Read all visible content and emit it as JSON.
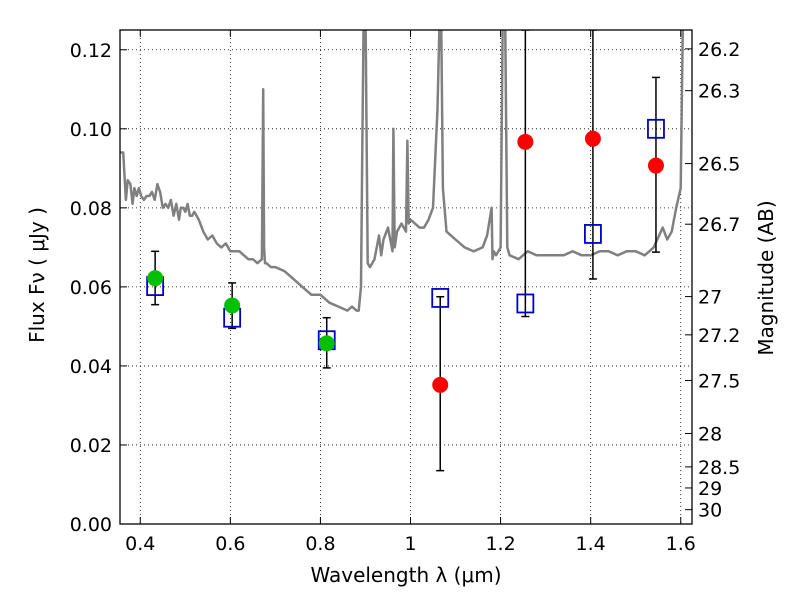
{
  "chart_data": {
    "type": "scatter",
    "xlabel": "Wavelength  λ (μm)",
    "ylabel": "Flux  Fν  ( μJy )",
    "y2label": "Magnitude (AB)",
    "xlim": [
      0.355,
      1.625
    ],
    "ylim": [
      0.0,
      0.125
    ],
    "grid": true,
    "grid_style": "dotted",
    "x_ticks": [
      0.4,
      0.6,
      0.8,
      1.0,
      1.2,
      1.4,
      1.6
    ],
    "x_tick_labels": [
      "0.4",
      "0.6",
      "0.8",
      "1",
      "1.2",
      "1.4",
      "1.6"
    ],
    "y_ticks": [
      0.0,
      0.02,
      0.04,
      0.06,
      0.08,
      0.1,
      0.12
    ],
    "y_tick_labels": [
      "0.00",
      "0.02",
      "0.04",
      "0.06",
      "0.08",
      "0.10",
      "0.12"
    ],
    "y2_tick_labels": [
      "26.2",
      "26.3",
      "26.5",
      "26.7",
      "27",
      "27.2",
      "27.5",
      "28",
      "28.5",
      "29",
      "30"
    ],
    "series": [
      {
        "style": "line",
        "color": "#808080",
        "x": [
          0.355,
          0.362,
          0.368,
          0.372,
          0.378,
          0.383,
          0.387,
          0.392,
          0.397,
          0.402,
          0.408,
          0.414,
          0.42,
          0.426,
          0.432,
          0.438,
          0.444,
          0.45,
          0.456,
          0.462,
          0.468,
          0.474,
          0.48,
          0.486,
          0.49,
          0.495,
          0.5,
          0.505,
          0.51,
          0.515,
          0.52,
          0.53,
          0.54,
          0.55,
          0.56,
          0.57,
          0.58,
          0.59,
          0.6,
          0.61,
          0.62,
          0.63,
          0.64,
          0.65,
          0.66,
          0.67,
          0.673,
          0.675,
          0.677,
          0.68,
          0.69,
          0.7,
          0.72,
          0.74,
          0.76,
          0.78,
          0.8,
          0.82,
          0.84,
          0.86,
          0.87,
          0.88,
          0.885,
          0.89,
          0.893,
          0.896,
          0.9,
          0.905,
          0.91,
          0.92,
          0.93,
          0.935,
          0.94,
          0.95,
          0.96,
          0.962,
          0.965,
          0.97,
          0.98,
          0.99,
          0.993,
          0.996,
          1.0,
          1.01,
          1.02,
          1.03,
          1.04,
          1.05,
          1.06,
          1.065,
          1.068,
          1.072,
          1.08,
          1.09,
          1.1,
          1.12,
          1.14,
          1.16,
          1.17,
          1.18,
          1.182,
          1.185,
          1.19,
          1.2,
          1.205,
          1.208,
          1.21,
          1.215,
          1.22,
          1.24,
          1.26,
          1.28,
          1.3,
          1.32,
          1.34,
          1.36,
          1.38,
          1.4,
          1.42,
          1.44,
          1.46,
          1.48,
          1.5,
          1.52,
          1.54,
          1.56,
          1.57,
          1.58,
          1.59,
          1.6,
          1.605,
          1.61,
          1.615,
          1.62,
          1.625
        ],
        "y": [
          0.094,
          0.094,
          0.082,
          0.087,
          0.086,
          0.081,
          0.085,
          0.083,
          0.085,
          0.083,
          0.082,
          0.083,
          0.083,
          0.084,
          0.082,
          0.086,
          0.084,
          0.08,
          0.081,
          0.08,
          0.082,
          0.078,
          0.081,
          0.077,
          0.08,
          0.08,
          0.079,
          0.081,
          0.078,
          0.078,
          0.079,
          0.077,
          0.074,
          0.072,
          0.073,
          0.071,
          0.07,
          0.071,
          0.069,
          0.069,
          0.069,
          0.068,
          0.067,
          0.067,
          0.066,
          0.067,
          0.11,
          0.07,
          0.066,
          0.066,
          0.065,
          0.065,
          0.064,
          0.062,
          0.06,
          0.058,
          0.058,
          0.056,
          0.055,
          0.054,
          0.055,
          0.054,
          0.054,
          0.06,
          0.095,
          0.13,
          0.13,
          0.066,
          0.065,
          0.067,
          0.073,
          0.068,
          0.072,
          0.075,
          0.069,
          0.1,
          0.07,
          0.074,
          0.076,
          0.074,
          0.097,
          0.076,
          0.077,
          0.076,
          0.075,
          0.075,
          0.077,
          0.08,
          0.105,
          0.13,
          0.13,
          0.085,
          0.074,
          0.073,
          0.072,
          0.07,
          0.069,
          0.07,
          0.073,
          0.08,
          0.067,
          0.069,
          0.068,
          0.07,
          0.13,
          0.13,
          0.13,
          0.07,
          0.068,
          0.067,
          0.069,
          0.068,
          0.068,
          0.068,
          0.068,
          0.069,
          0.068,
          0.068,
          0.069,
          0.069,
          0.068,
          0.069,
          0.069,
          0.068,
          0.07,
          0.075,
          0.072,
          0.074,
          0.08,
          0.085,
          0.13,
          0.13,
          0.13,
          0.13,
          0.13
        ]
      },
      {
        "style": "markers",
        "marker": "circle",
        "color": "#00c000",
        "x": [
          0.433,
          0.604,
          0.814
        ],
        "y": [
          0.0622,
          0.0553,
          0.0457
        ],
        "yerr_low": [
          0.0555,
          0.0495,
          0.0395
        ],
        "yerr_high": [
          0.069,
          0.061,
          0.0522
        ]
      },
      {
        "style": "markers",
        "marker": "circle",
        "color": "#ff0000",
        "x": [
          1.066,
          1.255,
          1.405,
          1.545
        ],
        "y": [
          0.0352,
          0.0967,
          0.0975,
          0.0907
        ],
        "yerr_low": [
          0.0135,
          0.0525,
          0.062,
          0.0688
        ],
        "yerr_high": [
          0.0575,
          0.125,
          0.125,
          0.113
        ]
      },
      {
        "style": "markers",
        "marker": "open-square",
        "color": "#0000cc",
        "x": [
          0.433,
          0.604,
          0.814,
          1.066,
          1.255,
          1.405,
          1.545
        ],
        "y": [
          0.0602,
          0.0522,
          0.0465,
          0.0572,
          0.0558,
          0.0734,
          0.1
        ]
      }
    ],
    "colors": {
      "text": "#000000",
      "grid": "#000000",
      "background": "#ffffff"
    }
  }
}
